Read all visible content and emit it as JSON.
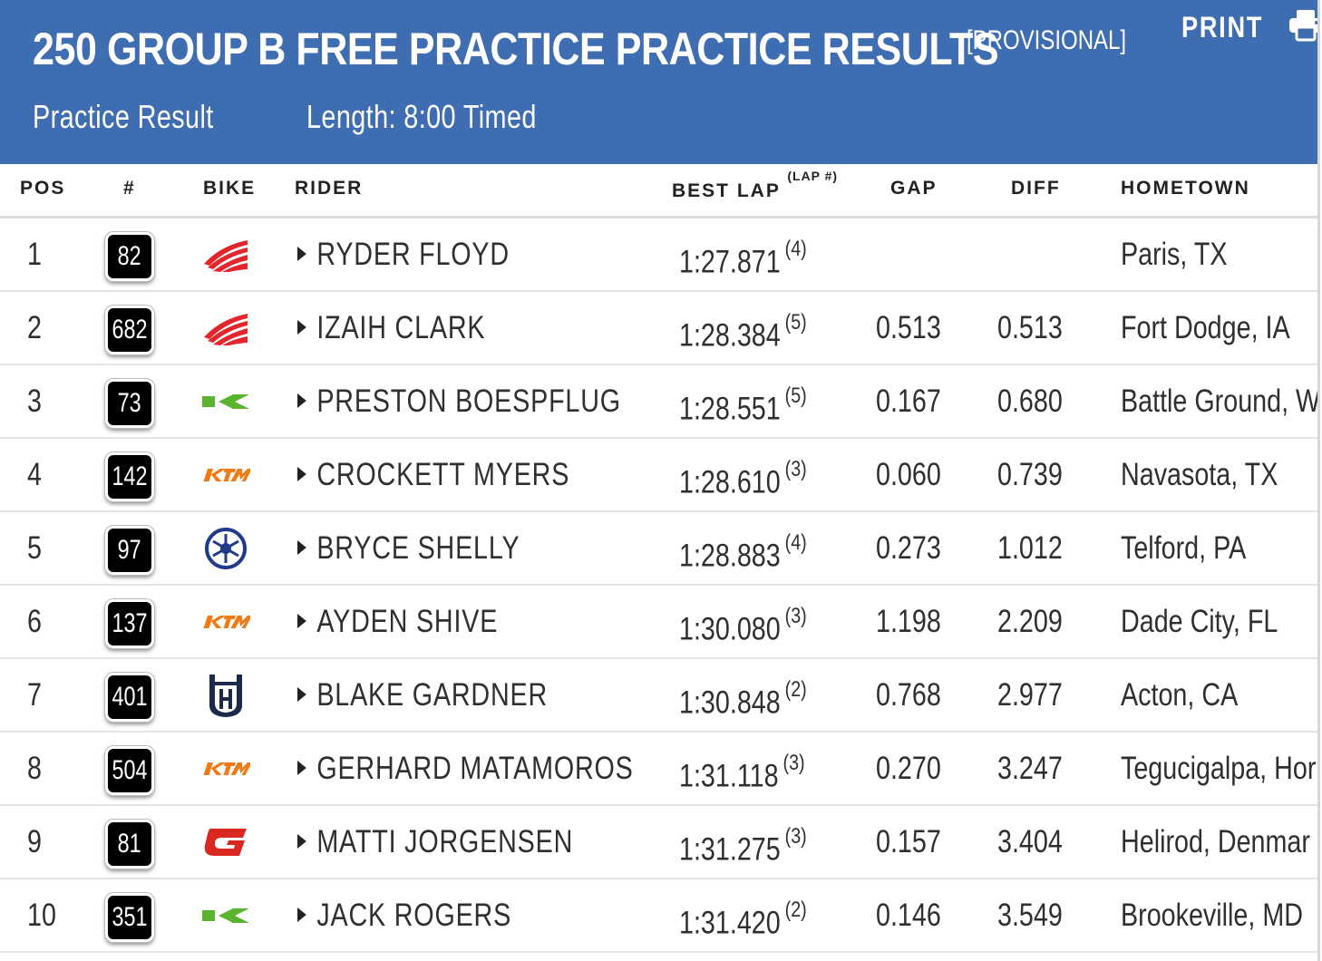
{
  "header": {
    "title": "250 GROUP B FREE PRACTICE PRACTICE RESULTS",
    "status": "[PROVISIONAL]",
    "print_label": "PRINT",
    "print_icon": "printer-icon",
    "result_type": "Practice Result",
    "length": "Length: 8:00 Timed",
    "bg_color": "#3e6db1"
  },
  "columns": {
    "pos": "POS",
    "num": "#",
    "bike": "BIKE",
    "rider": "RIDER",
    "best_lap": "BEST LAP",
    "lap_num": "(LAP #)",
    "gap": "GAP",
    "diff": "DIFF",
    "hometown": "HOMETOWN"
  },
  "rows": [
    {
      "pos": "1",
      "num": "82",
      "bike": "honda-icon",
      "rider": "RYDER FLOYD",
      "best_lap": "1:27.871",
      "lap": "(4)",
      "gap": "",
      "diff": "",
      "hometown": "Paris, TX"
    },
    {
      "pos": "2",
      "num": "682",
      "bike": "honda-icon",
      "rider": "IZAIH CLARK",
      "best_lap": "1:28.384",
      "lap": "(5)",
      "gap": "0.513",
      "diff": "0.513",
      "hometown": "Fort Dodge, IA"
    },
    {
      "pos": "3",
      "num": "73",
      "bike": "kawasaki-icon",
      "rider": "PRESTON BOESPFLUG",
      "best_lap": "1:28.551",
      "lap": "(5)",
      "gap": "0.167",
      "diff": "0.680",
      "hometown": "Battle Ground, W"
    },
    {
      "pos": "4",
      "num": "142",
      "bike": "ktm-icon",
      "rider": "CROCKETT MYERS",
      "best_lap": "1:28.610",
      "lap": "(3)",
      "gap": "0.060",
      "diff": "0.739",
      "hometown": "Navasota, TX"
    },
    {
      "pos": "5",
      "num": "97",
      "bike": "yamaha-icon",
      "rider": "BRYCE SHELLY",
      "best_lap": "1:28.883",
      "lap": "(4)",
      "gap": "0.273",
      "diff": "1.012",
      "hometown": "Telford, PA"
    },
    {
      "pos": "6",
      "num": "137",
      "bike": "ktm-icon",
      "rider": "AYDEN SHIVE",
      "best_lap": "1:30.080",
      "lap": "(3)",
      "gap": "1.198",
      "diff": "2.209",
      "hometown": "Dade City, FL"
    },
    {
      "pos": "7",
      "num": "401",
      "bike": "husqvarna-icon",
      "rider": "BLAKE GARDNER",
      "best_lap": "1:30.848",
      "lap": "(2)",
      "gap": "0.768",
      "diff": "2.977",
      "hometown": "Acton, CA"
    },
    {
      "pos": "8",
      "num": "504",
      "bike": "ktm-icon",
      "rider": "GERHARD MATAMOROS",
      "best_lap": "1:31.118",
      "lap": "(3)",
      "gap": "0.270",
      "diff": "3.247",
      "hometown": "Tegucigalpa, Hor"
    },
    {
      "pos": "9",
      "num": "81",
      "bike": "gasgas-icon",
      "rider": "MATTI JORGENSEN",
      "best_lap": "1:31.275",
      "lap": "(3)",
      "gap": "0.157",
      "diff": "3.404",
      "hometown": "Helirod, Denmar"
    },
    {
      "pos": "10",
      "num": "351",
      "bike": "kawasaki-icon",
      "rider": "JACK ROGERS",
      "best_lap": "1:31.420",
      "lap": "(2)",
      "gap": "0.146",
      "diff": "3.549",
      "hometown": "Brookeville, MD"
    }
  ],
  "colors": {
    "honda": "#e3262b",
    "kawasaki": "#59b52e",
    "ktm": "#f07a14",
    "yamaha": "#1f3a8a",
    "husqvarna": "#1b2a4a",
    "gasgas": "#d9281f"
  }
}
